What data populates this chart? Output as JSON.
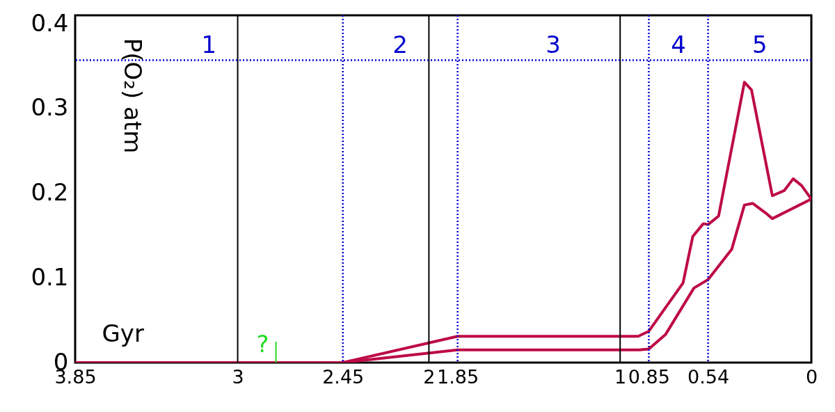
{
  "chart_data": {
    "type": "line",
    "xlabel": "Gyr",
    "ylabel": "P(O₂) atm",
    "xlim": [
      3.85,
      0
    ],
    "xticks": [
      3.85,
      3,
      2.45,
      2,
      1.85,
      1,
      0.85,
      0.54,
      0
    ],
    "ylim": [
      0,
      0.41
    ],
    "yticks": [
      0,
      0.1,
      0.2,
      0.3,
      0.4
    ],
    "grid": false,
    "legend": false,
    "marker": "none",
    "line_style": "solid",
    "series": [
      {
        "color": "#be0a46",
        "x": [
          3.85,
          2.45,
          1.85,
          0.906,
          0.85,
          0.671,
          0.62,
          0.565,
          0.54,
          0.485,
          0.35,
          0.313,
          0.204,
          0.142,
          0.095,
          0.051,
          0
        ],
        "values": [
          0,
          0,
          0.031,
          0.031,
          0.037,
          0.094,
          0.149,
          0.164,
          0.163,
          0.173,
          0.331,
          0.322,
          0.197,
          0.203,
          0.217,
          0.209,
          0.193
        ]
      },
      {
        "color": "#be0a46",
        "x": [
          3.85,
          2.45,
          1.85,
          0.9,
          0.85,
          0.763,
          0.614,
          0.54,
          0.416,
          0.35,
          0.307,
          0.241,
          0.204,
          0
        ],
        "values": [
          0,
          0,
          0.015,
          0.015,
          0.016,
          0.033,
          0.088,
          0.098,
          0.134,
          0.186,
          0.188,
          0.177,
          0.17,
          0.193
        ]
      }
    ],
    "ref_lines": [
      {
        "axis": "x",
        "value": 3,
        "color": "#000000",
        "line_style": "solid"
      },
      {
        "axis": "x",
        "value": 2,
        "color": "#000000",
        "line_style": "solid"
      },
      {
        "axis": "x",
        "value": 1,
        "color": "#000000",
        "line_style": "solid"
      },
      {
        "axis": "x",
        "value": 2.45,
        "color": "#0000cc",
        "line_style": "dotted"
      },
      {
        "axis": "x",
        "value": 1.85,
        "color": "#0000cc",
        "line_style": "dotted"
      },
      {
        "axis": "x",
        "value": 0.85,
        "color": "#0000cc",
        "line_style": "dotted"
      },
      {
        "axis": "x",
        "value": 0.54,
        "color": "#0000cc",
        "line_style": "dotted"
      },
      {
        "axis": "y",
        "value": 0.357,
        "color": "#0000cc",
        "line_style": "dotted"
      },
      {
        "axis": "x",
        "value": 2.8,
        "label": "?",
        "color": "#22dd22",
        "line_style": "solid"
      }
    ],
    "annotations": [
      "1",
      "2",
      "3",
      "4",
      "5"
    ]
  }
}
